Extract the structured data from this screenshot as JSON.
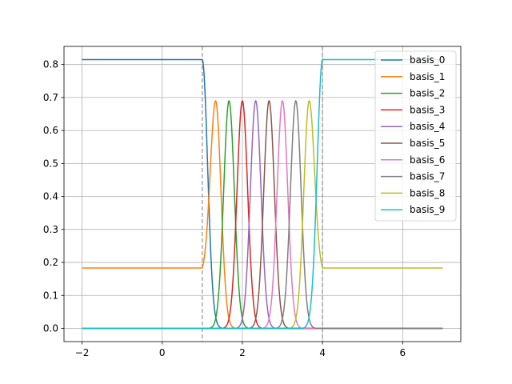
{
  "chart_data": {
    "type": "line",
    "title": "",
    "xlabel": "",
    "ylabel": "",
    "xlim": [
      -2.45,
      7.45
    ],
    "ylim": [
      -0.04,
      0.855
    ],
    "x_ticks": [
      -2,
      0,
      2,
      4,
      6
    ],
    "x_tick_labels": [
      "−2",
      "0",
      "2",
      "4",
      "6"
    ],
    "y_ticks": [
      0.0,
      0.1,
      0.2,
      0.3,
      0.4,
      0.5,
      0.6,
      0.7,
      0.8
    ],
    "y_tick_labels": [
      "0.0",
      "0.1",
      "0.2",
      "0.3",
      "0.4",
      "0.5",
      "0.6",
      "0.7",
      "0.8"
    ],
    "grid": true,
    "legend_position": "top-right",
    "x_range": [
      -2,
      7
    ],
    "vlines": [
      1,
      4
    ],
    "peak_height": 0.69,
    "edge_high": 0.815,
    "edge_low": 0.183,
    "gaussian_width": 0.133,
    "series": [
      {
        "name": "basis_0",
        "color": "#1f77b4",
        "kind": "left_edge",
        "center": 1.0
      },
      {
        "name": "basis_1",
        "color": "#ff7f0e",
        "kind": "left_peak",
        "center": 1.333
      },
      {
        "name": "basis_2",
        "color": "#2ca02c",
        "kind": "gaussian",
        "center": 1.667
      },
      {
        "name": "basis_3",
        "color": "#d62728",
        "kind": "gaussian",
        "center": 2.0
      },
      {
        "name": "basis_4",
        "color": "#9467bd",
        "kind": "gaussian",
        "center": 2.333
      },
      {
        "name": "basis_5",
        "color": "#8c564b",
        "kind": "gaussian",
        "center": 2.667
      },
      {
        "name": "basis_6",
        "color": "#e377c2",
        "kind": "gaussian",
        "center": 3.0
      },
      {
        "name": "basis_7",
        "color": "#7f7f7f",
        "kind": "gaussian",
        "center": 3.333
      },
      {
        "name": "basis_8",
        "color": "#bcbd22",
        "kind": "right_peak",
        "center": 3.667
      },
      {
        "name": "basis_9",
        "color": "#17becf",
        "kind": "right_edge",
        "center": 4.0
      }
    ]
  }
}
